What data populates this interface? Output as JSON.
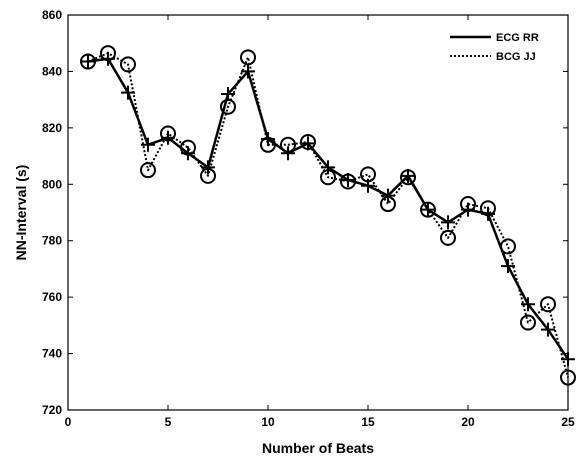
{
  "chart_data": {
    "type": "line",
    "title": "",
    "xlabel": "Number of Beats",
    "ylabel": "NN-Interval (s)",
    "xlim": [
      0,
      25
    ],
    "ylim": [
      720,
      860
    ],
    "xticks": [
      0,
      5,
      10,
      15,
      20,
      25
    ],
    "yticks": [
      720,
      740,
      760,
      780,
      800,
      820,
      840,
      860
    ],
    "grid": false,
    "legend_position": "top-right",
    "x": [
      1,
      2,
      3,
      4,
      5,
      6,
      7,
      8,
      9,
      10,
      11,
      12,
      13,
      14,
      15,
      16,
      17,
      18,
      19,
      20,
      21,
      22,
      23,
      24,
      25
    ],
    "series": [
      {
        "name": "ECG RR",
        "line_style": "solid",
        "marker": "plus",
        "color": "#000000",
        "values": [
          843.5,
          844.5,
          832.5,
          814,
          816.5,
          811,
          806,
          832,
          840,
          816,
          811,
          814.5,
          806,
          801.5,
          799.5,
          796,
          803,
          791,
          786.5,
          791,
          789.5,
          771,
          757.5,
          748.5,
          738
        ]
      },
      {
        "name": "BCG JJ",
        "line_style": "dotted",
        "marker": "circle",
        "color": "#000000",
        "values": [
          843.5,
          846.5,
          842.5,
          805,
          818,
          813,
          803,
          827.5,
          845,
          814,
          814,
          815,
          802.5,
          801,
          803.5,
          793,
          802.5,
          791,
          781,
          793,
          791.5,
          778,
          751,
          757.5,
          731.5
        ]
      }
    ]
  }
}
